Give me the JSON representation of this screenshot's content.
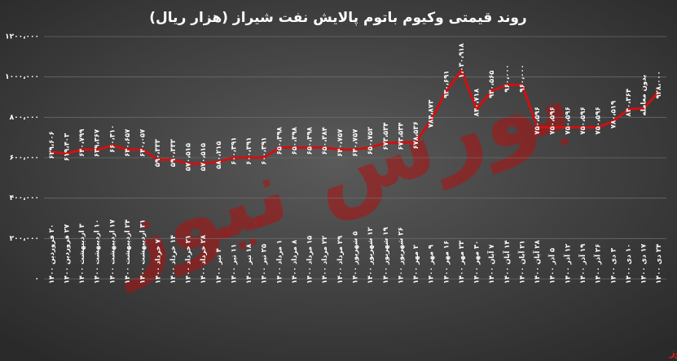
{
  "chart_data": {
    "type": "line",
    "title": "روند قیمتی وکیوم باتوم پالایش نفت شیراز (هزار ریال)",
    "watermark": "بورس نیوز",
    "source": "بورس نیوز",
    "categories": [
      "۲۰ فروردین ۱۴۰۰",
      "۲۷ فروردین ۱۴۰۰",
      "۳ اردیبهشت ۱۴۰۰",
      "۱۰ اردیبهشت ۱۴۰۰",
      "۱۷ اردیبهشت ۱۴۰۰",
      "۲۴ اردیبهشت ۱۴۰۰",
      "۳۱ اردیبهشت ۱۴۰۰",
      "۷ خرداد ۱۴۰۰",
      "۱۴ خرداد ۱۴۰۰",
      "۲۱ خرداد ۱۴۰۰",
      "۲۸ خرداد ۱۴۰۰",
      "۴ تیر ۱۴۰۰",
      "۱۱ تیر ۱۴۰۰",
      "۱۸ تیر ۱۴۰۰",
      "۲۵ تیر ۱۴۰۰",
      "۱ مرداد ۱۴۰۰",
      "۸ مرداد ۱۴۰۰",
      "۱۵ مرداد ۱۴۰۰",
      "۲۲ مرداد ۱۴۰۰",
      "۲۹ مرداد ۱۴۰۰",
      "۵ شهریور ۱۴۰۰",
      "۱۲ شهریور ۱۴۰۰",
      "۱۹ شهریور ۱۴۰۰",
      "۲۶ شهریور ۱۴۰۰",
      "۲ مهر ۱۴۰۰",
      "۹ مهر ۱۴۰۰",
      "۱۶ مهر ۱۴۰۰",
      "۲۳ مهر ۱۴۰۰",
      "۳۰ مهر ۱۴۰۰",
      "۷ آبان ۱۴۰۰",
      "۱۴ آبان ۱۴۰۰",
      "۲۱ آبان ۱۴۰۰",
      "۲۸ آبان ۱۴۰۰",
      "۵ آذر ۱۴۰۰",
      "۱۲ آذر ۱۴۰۰",
      "۱۹ آذر ۱۴۰۰",
      "۲۶ آذر ۱۴۰۰",
      "۳ دی ۱۴۰۰",
      "۱۰ دی ۱۴۰۰",
      "۱۷ دی ۱۴۰۰",
      "۲۴ دی ۱۴۰۰"
    ],
    "values": [
      629606,
      619403,
      640799,
      639367,
      660310,
      640657,
      640057,
      590333,
      590333,
      570515,
      570515,
      580215,
      600391,
      600391,
      600391,
      650398,
      650398,
      650398,
      650384,
      640757,
      640757,
      650752,
      673534,
      673534,
      678536,
      784873,
      930691,
      1030918,
      840718,
      930565,
      960000,
      960000,
      750596,
      750596,
      750596,
      750596,
      750596,
      780519,
      840364,
      843640,
      928000
    ],
    "value_labels": [
      "۶۲۹،۶۰۶",
      "۶۱۹،۴۰۳",
      "۶۴۰،۷۹۹",
      "۶۳۹،۳۶۷",
      "۶۶۰،۳۱۰",
      "۶۴۰،۶۵۷",
      "۶۴۰،۰۵۷",
      "۵۹۰،۳۳۳",
      "۵۹۰،۳۳۳",
      "۵۷۰،۵۱۵",
      "۵۷۰،۵۱۵",
      "۵۸۰،۲۱۵",
      "۶۰۰،۳۹۱",
      "۶۰۰،۳۹۱",
      "۶۰۰،۳۹۱",
      "۶۵۰،۳۹۸",
      "۶۵۰،۳۹۸",
      "۶۵۰،۳۹۸",
      "۶۵۰،۳۸۴",
      "۶۴۰،۷۵۷",
      "۶۴۰،۷۵۷",
      "۶۵۰،۷۵۲",
      "۶۷۳،۵۳۴",
      "۶۷۳،۵۳۴",
      "۶۷۸،۵۳۶",
      "۷۸۴،۸۷۳",
      "۹۳۰،۶۹۱",
      "۱،۰۳۰،۹۱۸",
      "۸۴۰،۷۱۸",
      "۹۳۰،۵۶۵",
      "۹۶۰،۰۰۰",
      "۹۶۰،۰۰۰",
      "۷۵۰،۵۹۶",
      "۷۵۰،۵۹۶",
      "۷۵۰،۵۹۶",
      "۷۵۰،۵۹۶",
      "۷۵۰،۵۹۶",
      "۷۸۰،۵۱۹",
      "۸۴۰،۳۶۴",
      "بدون معامله",
      "۹۲۸،۰۰۰"
    ],
    "color": "#d01010",
    "ylim": [
      0,
      1200000
    ],
    "yticks": [
      {
        "value": 0,
        "label": "۰"
      },
      {
        "value": 200000,
        "label": "۲۰۰،۰۰۰"
      },
      {
        "value": 400000,
        "label": "۴۰۰،۰۰۰"
      },
      {
        "value": 600000,
        "label": "۶۰۰،۰۰۰"
      },
      {
        "value": 800000,
        "label": "۸۰۰،۰۰۰"
      },
      {
        "value": 1000000,
        "label": "۱۰۰۰،۰۰۰"
      },
      {
        "value": 1200000,
        "label": "۱۲۰۰،۰۰۰"
      }
    ],
    "grid": true
  }
}
